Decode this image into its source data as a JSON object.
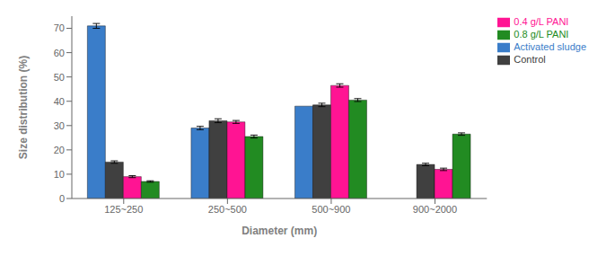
{
  "chart_data": {
    "type": "bar",
    "xlabel": "Diameter (mm)",
    "ylabel": "Size distribution (%)",
    "categories": [
      "125~250",
      "250~500",
      "500~900",
      "900~2000"
    ],
    "series": [
      {
        "name": "Activated sludge",
        "color": "#3A7DC9",
        "values": [
          71,
          29,
          38,
          0
        ],
        "errors": [
          1.0,
          0.7,
          0,
          0
        ]
      },
      {
        "name": "Control",
        "color": "#404040",
        "values": [
          15,
          32,
          38.5,
          14
        ],
        "errors": [
          0.5,
          0.8,
          0.7,
          0.5
        ]
      },
      {
        "name": "0.4 g/L PANI",
        "color": "#FF1493",
        "values": [
          9,
          31.5,
          46.5,
          12
        ],
        "errors": [
          0.4,
          0.6,
          0.7,
          0.5
        ]
      },
      {
        "name": "0.8 g/L PANI",
        "color": "#228B22",
        "values": [
          7,
          25.5,
          40.5,
          26.5
        ],
        "errors": [
          0.3,
          0.6,
          0.6,
          0.5
        ]
      }
    ],
    "ylim": [
      0,
      75
    ],
    "yticks": [
      0,
      10,
      20,
      30,
      40,
      50,
      60,
      70
    ],
    "legend": "upper right",
    "grid": false
  }
}
